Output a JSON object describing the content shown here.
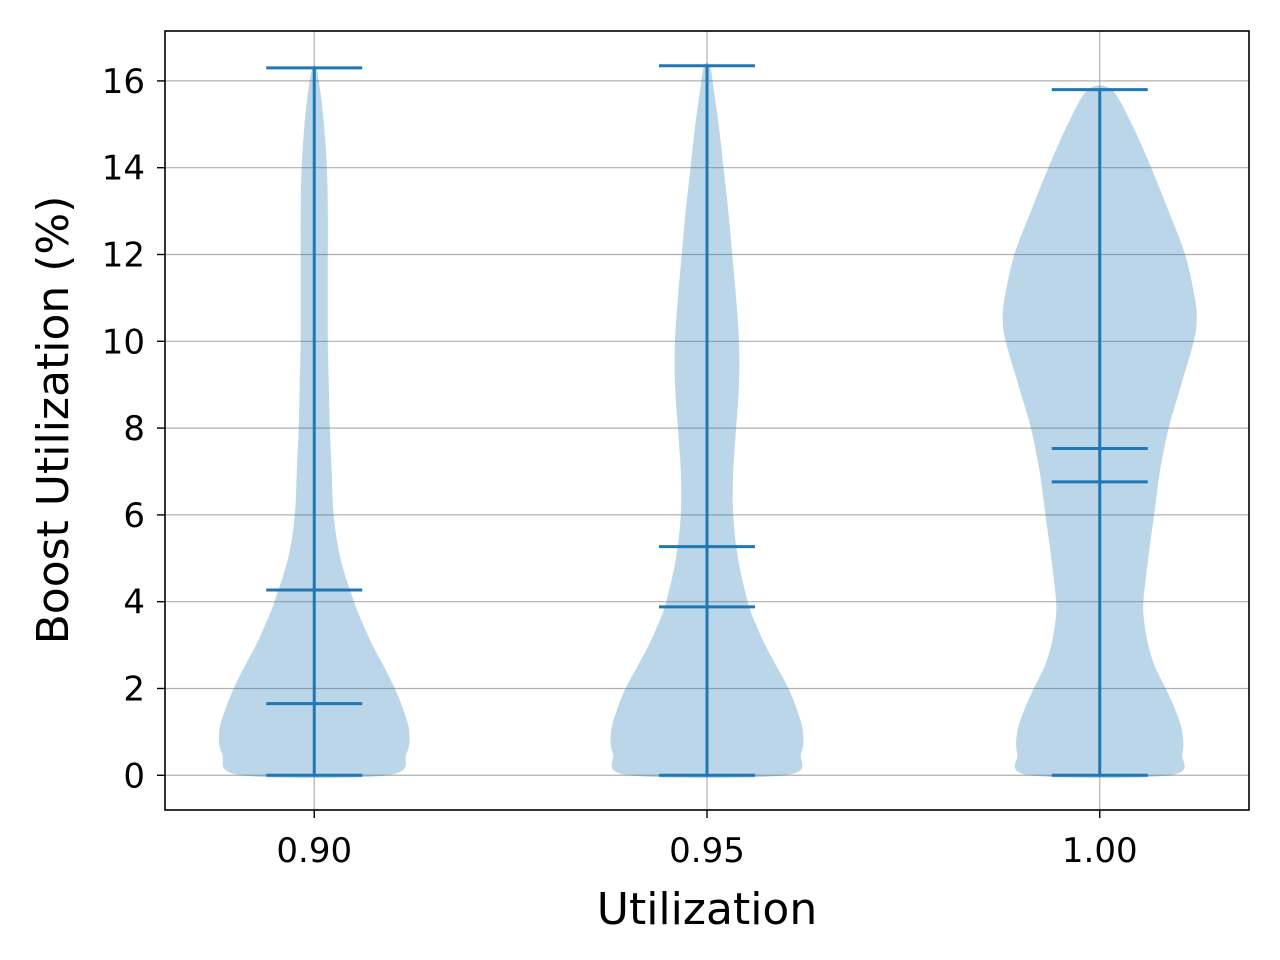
{
  "chart_data": {
    "type": "violin",
    "title": "",
    "xlabel": "Utilization",
    "ylabel": "Boost Utilization (%)",
    "xlim": [
      0.881,
      1.019
    ],
    "ylim": [
      -0.8,
      17.15
    ],
    "grid": true,
    "x_ticks": [
      "0.90",
      "0.95",
      "1.00"
    ],
    "y_ticks": [
      "0",
      "2",
      "4",
      "6",
      "8",
      "10",
      "12",
      "14",
      "16"
    ],
    "colors": {
      "violin_fill": "#1f77b4",
      "violin_opacity": 0.3,
      "lines": "#1f77b4",
      "grid": "#b0b0b0"
    },
    "violins": [
      {
        "x": 0.9,
        "min": 0.0,
        "max": 16.3,
        "mean": 4.27,
        "median": 1.65,
        "density_profile": [
          [
            0.0,
            0.75
          ],
          [
            0.5,
            0.95
          ],
          [
            1.0,
            0.98
          ],
          [
            1.5,
            0.92
          ],
          [
            2.0,
            0.83
          ],
          [
            2.5,
            0.72
          ],
          [
            3.0,
            0.6
          ],
          [
            3.5,
            0.5
          ],
          [
            4.0,
            0.41
          ],
          [
            5.0,
            0.27
          ],
          [
            6.0,
            0.2
          ],
          [
            7.0,
            0.18
          ],
          [
            8.0,
            0.16
          ],
          [
            9.0,
            0.15
          ],
          [
            10.0,
            0.14
          ],
          [
            11.0,
            0.14
          ],
          [
            12.0,
            0.14
          ],
          [
            13.0,
            0.14
          ],
          [
            14.0,
            0.13
          ],
          [
            15.0,
            0.1
          ],
          [
            15.8,
            0.06
          ],
          [
            16.3,
            0.02
          ]
        ]
      },
      {
        "x": 0.95,
        "min": 0.0,
        "max": 16.35,
        "mean": 5.27,
        "median": 3.88,
        "density_profile": [
          [
            0.0,
            0.8
          ],
          [
            0.5,
            0.97
          ],
          [
            1.0,
            0.99
          ],
          [
            1.5,
            0.93
          ],
          [
            2.0,
            0.84
          ],
          [
            2.5,
            0.72
          ],
          [
            3.0,
            0.6
          ],
          [
            3.5,
            0.5
          ],
          [
            4.0,
            0.42
          ],
          [
            5.0,
            0.32
          ],
          [
            6.0,
            0.27
          ],
          [
            7.0,
            0.27
          ],
          [
            8.0,
            0.3
          ],
          [
            9.0,
            0.33
          ],
          [
            10.0,
            0.33
          ],
          [
            11.0,
            0.3
          ],
          [
            12.0,
            0.26
          ],
          [
            13.0,
            0.22
          ],
          [
            14.0,
            0.17
          ],
          [
            15.0,
            0.12
          ],
          [
            15.8,
            0.07
          ],
          [
            16.35,
            0.03
          ]
        ]
      },
      {
        "x": 1.0,
        "min": 0.0,
        "max": 15.8,
        "mean": 7.53,
        "median": 6.76,
        "density_profile": [
          [
            0.0,
            0.72
          ],
          [
            0.5,
            0.85
          ],
          [
            1.0,
            0.85
          ],
          [
            1.5,
            0.78
          ],
          [
            2.0,
            0.68
          ],
          [
            2.5,
            0.57
          ],
          [
            3.0,
            0.5
          ],
          [
            3.5,
            0.46
          ],
          [
            4.0,
            0.45
          ],
          [
            5.0,
            0.5
          ],
          [
            6.0,
            0.56
          ],
          [
            7.0,
            0.62
          ],
          [
            8.0,
            0.71
          ],
          [
            9.0,
            0.84
          ],
          [
            10.0,
            0.97
          ],
          [
            10.5,
            1.0
          ],
          [
            11.0,
            0.98
          ],
          [
            12.0,
            0.88
          ],
          [
            13.0,
            0.71
          ],
          [
            14.0,
            0.53
          ],
          [
            15.0,
            0.33
          ],
          [
            15.8,
            0.12
          ]
        ]
      }
    ]
  }
}
